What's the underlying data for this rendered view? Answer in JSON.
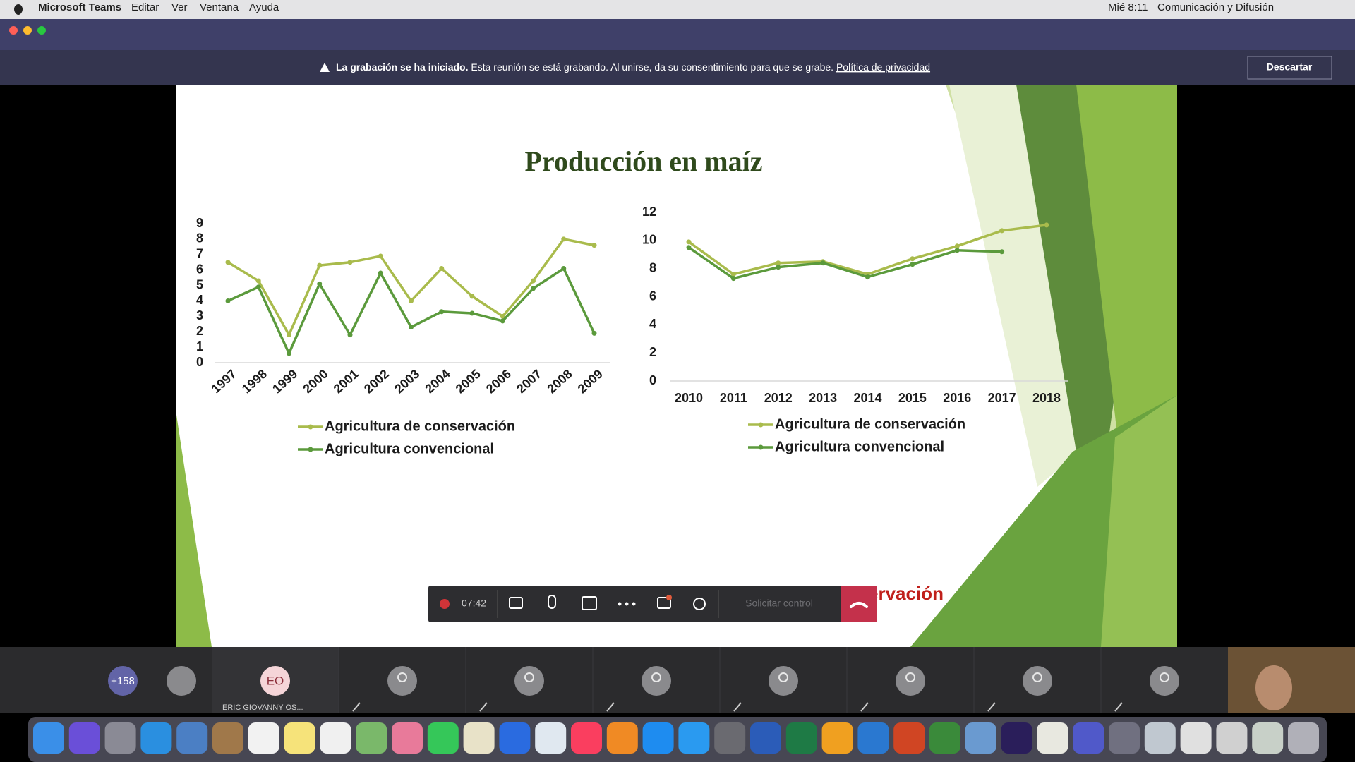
{
  "menu_bar": {
    "app": "Microsoft Teams",
    "items": [
      "Editar",
      "Ver",
      "Ventana",
      "Ayuda"
    ],
    "clock": "Mié 8:11",
    "user": "Comunicación y Difusión"
  },
  "banner": {
    "title": "La grabación se ha iniciado.",
    "message": "Esta reunión se está grabando. Al unirse, da su consentimiento para que se grabe.",
    "link": "Política de privacidad",
    "button": "Descartar"
  },
  "slide": {
    "title": "Producción en maíz",
    "source": "Fuente: CIMMYT -Agricultura de Conservación",
    "charts": [
      {
        "type": "line",
        "categories": [
          "1997",
          "1998",
          "1999",
          "2000",
          "2001",
          "2002",
          "2003",
          "2004",
          "2005",
          "2006",
          "2007",
          "2008",
          "2009"
        ],
        "ylim": [
          0,
          9
        ],
        "yticks": [
          0,
          1,
          2,
          3,
          4,
          5,
          6,
          7,
          8,
          9
        ],
        "series": [
          {
            "name": "Agricultura de conservación",
            "color": "#a9bb4c",
            "values": [
              6.5,
              5.3,
              1.8,
              6.3,
              6.5,
              6.9,
              4.0,
              6.1,
              4.3,
              3.0,
              5.3,
              8.0,
              7.6
            ]
          },
          {
            "name": "Agricultura convencional",
            "color": "#5b9a3c",
            "values": [
              4.0,
              4.9,
              0.6,
              5.1,
              1.8,
              5.8,
              2.3,
              3.3,
              3.2,
              2.7,
              4.8,
              6.1,
              1.9
            ]
          }
        ]
      },
      {
        "type": "line",
        "categories": [
          "2010",
          "2011",
          "2012",
          "2013",
          "2014",
          "2015",
          "2016",
          "2017",
          "2018"
        ],
        "ylim": [
          0,
          12
        ],
        "yticks": [
          0,
          2,
          4,
          6,
          8,
          10,
          12
        ],
        "series": [
          {
            "name": "Agricultura de conservación",
            "color": "#a9bb4c",
            "values": [
              9.9,
              7.6,
              8.4,
              8.5,
              7.6,
              8.7,
              9.6,
              10.7,
              11.1
            ]
          },
          {
            "name": "Agricultura convencional",
            "color": "#5b9a3c",
            "values": [
              9.5,
              7.3,
              8.1,
              8.4,
              7.4,
              8.3,
              9.3,
              9.2,
              null
            ]
          }
        ]
      }
    ]
  },
  "toolbar": {
    "timer": "07:42",
    "request_control": "Solicitar control"
  },
  "participants": {
    "overflow": "+158",
    "initials": "EO",
    "name": "ERIC GIOVANNY OS..."
  }
}
